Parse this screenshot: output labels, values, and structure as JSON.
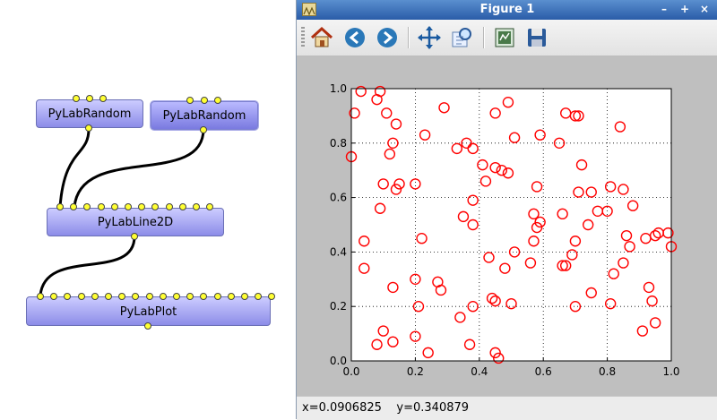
{
  "node_editor": {
    "nodes": [
      {
        "label": "PyLabRandom"
      },
      {
        "label": "PyLabRandom"
      },
      {
        "label": "PyLabLine2D"
      },
      {
        "label": "PyLabPlot"
      }
    ]
  },
  "figure_window": {
    "title": "Figure 1",
    "toolbar": {
      "home": "home-icon",
      "back": "back-arrow-icon",
      "forward": "forward-arrow-icon",
      "pan": "pan-icon",
      "zoom": "zoom-icon",
      "configure": "configure-subplots-icon",
      "save": "save-icon"
    },
    "status": {
      "x": "x=0.0906825",
      "y": "y=0.340879"
    }
  },
  "colors": {
    "marker": "#ff0000",
    "node_fill": "#a0a0f0",
    "port": "#ffff33",
    "titlebar": "#3a6db8"
  },
  "chart_data": {
    "type": "scatter",
    "title": "",
    "xlabel": "",
    "ylabel": "",
    "xlim": [
      0,
      1
    ],
    "ylim": [
      0,
      1
    ],
    "xticks": [
      "0.0",
      "0.2",
      "0.4",
      "0.6",
      "0.8",
      "1.0"
    ],
    "yticks": [
      "0.0",
      "0.2",
      "0.4",
      "0.6",
      "0.8",
      "1.0"
    ],
    "grid": true,
    "marker": "hollow circle",
    "points": [
      [
        0.03,
        0.99
      ],
      [
        0.08,
        0.96
      ],
      [
        0.09,
        0.99
      ],
      [
        0.01,
        0.91
      ],
      [
        0.11,
        0.91
      ],
      [
        0.14,
        0.87
      ],
      [
        0.29,
        0.93
      ],
      [
        0.45,
        0.91
      ],
      [
        0.49,
        0.95
      ],
      [
        0.67,
        0.91
      ],
      [
        0.7,
        0.9
      ],
      [
        0.71,
        0.9
      ],
      [
        0.84,
        0.86
      ],
      [
        0.23,
        0.83
      ],
      [
        0.13,
        0.8
      ],
      [
        0.33,
        0.78
      ],
      [
        0.36,
        0.8
      ],
      [
        0.38,
        0.78
      ],
      [
        0.51,
        0.82
      ],
      [
        0.59,
        0.83
      ],
      [
        0.65,
        0.8
      ],
      [
        0.0,
        0.75
      ],
      [
        0.12,
        0.76
      ],
      [
        0.41,
        0.72
      ],
      [
        0.45,
        0.71
      ],
      [
        0.47,
        0.7
      ],
      [
        0.49,
        0.69
      ],
      [
        0.72,
        0.72
      ],
      [
        0.42,
        0.66
      ],
      [
        0.1,
        0.65
      ],
      [
        0.14,
        0.63
      ],
      [
        0.15,
        0.65
      ],
      [
        0.2,
        0.65
      ],
      [
        0.58,
        0.64
      ],
      [
        0.71,
        0.62
      ],
      [
        0.75,
        0.62
      ],
      [
        0.81,
        0.64
      ],
      [
        0.85,
        0.63
      ],
      [
        0.38,
        0.59
      ],
      [
        0.09,
        0.56
      ],
      [
        0.35,
        0.53
      ],
      [
        0.57,
        0.54
      ],
      [
        0.66,
        0.54
      ],
      [
        0.77,
        0.55
      ],
      [
        0.8,
        0.55
      ],
      [
        0.88,
        0.57
      ],
      [
        0.74,
        0.5
      ],
      [
        0.58,
        0.49
      ],
      [
        0.59,
        0.51
      ],
      [
        0.38,
        0.5
      ],
      [
        0.04,
        0.44
      ],
      [
        0.22,
        0.45
      ],
      [
        0.57,
        0.44
      ],
      [
        0.7,
        0.44
      ],
      [
        0.86,
        0.46
      ],
      [
        0.92,
        0.45
      ],
      [
        0.95,
        0.46
      ],
      [
        0.96,
        0.47
      ],
      [
        0.99,
        0.47
      ],
      [
        0.87,
        0.42
      ],
      [
        1.0,
        0.42
      ],
      [
        0.43,
        0.38
      ],
      [
        0.51,
        0.4
      ],
      [
        0.69,
        0.39
      ],
      [
        0.04,
        0.34
      ],
      [
        0.48,
        0.34
      ],
      [
        0.56,
        0.36
      ],
      [
        0.66,
        0.35
      ],
      [
        0.67,
        0.35
      ],
      [
        0.82,
        0.32
      ],
      [
        0.85,
        0.36
      ],
      [
        0.13,
        0.27
      ],
      [
        0.2,
        0.3
      ],
      [
        0.27,
        0.29
      ],
      [
        0.28,
        0.26
      ],
      [
        0.75,
        0.25
      ],
      [
        0.93,
        0.27
      ],
      [
        0.94,
        0.22
      ],
      [
        0.21,
        0.2
      ],
      [
        0.38,
        0.2
      ],
      [
        0.44,
        0.23
      ],
      [
        0.45,
        0.22
      ],
      [
        0.5,
        0.21
      ],
      [
        0.7,
        0.2
      ],
      [
        0.81,
        0.21
      ],
      [
        0.34,
        0.16
      ],
      [
        0.95,
        0.14
      ],
      [
        0.1,
        0.11
      ],
      [
        0.2,
        0.09
      ],
      [
        0.91,
        0.11
      ],
      [
        0.08,
        0.06
      ],
      [
        0.13,
        0.07
      ],
      [
        0.24,
        0.03
      ],
      [
        0.37,
        0.06
      ],
      [
        0.45,
        0.03
      ],
      [
        0.46,
        0.01
      ]
    ]
  }
}
